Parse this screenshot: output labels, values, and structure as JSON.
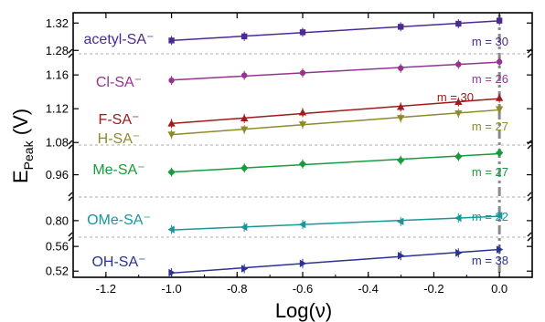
{
  "chart_data": {
    "type": "scatter",
    "xlabel": "Log(ν)",
    "ylabel": {
      "main": "E",
      "sub": "Peak",
      "unit": " (V)"
    },
    "xlim": [
      -1.3,
      0.1
    ],
    "xticks": [
      "-1.2",
      "-1.0",
      "-0.8",
      "-0.6",
      "-0.4",
      "-0.2",
      "0.0"
    ],
    "xtick_values": [
      -1.2,
      -1.0,
      -0.8,
      -0.6,
      -0.4,
      -0.2,
      0.0
    ],
    "x": [
      -1.0,
      -0.778,
      -0.6,
      -0.301,
      -0.125,
      0.0
    ],
    "panels": [
      {
        "id": "p1",
        "ylim": [
          1.275,
          1.335
        ],
        "yticks": [
          "1.28",
          "1.32"
        ],
        "ytick_values": [
          1.28,
          1.32
        ]
      },
      {
        "id": "p2",
        "ylim": [
          1.077,
          1.185
        ],
        "yticks": [
          "1.08",
          "1.12",
          "1.16"
        ],
        "ytick_values": [
          1.08,
          1.12,
          1.16
        ]
      },
      {
        "id": "p3",
        "ylim": [
          0.93,
          1.0
        ],
        "yticks": [
          "0.96"
        ],
        "ytick_values": [
          0.96
        ]
      },
      {
        "id": "p4",
        "ylim": [
          0.772,
          0.84
        ],
        "yticks": [
          "0.80"
        ],
        "ytick_values": [
          0.8
        ]
      },
      {
        "id": "p5",
        "ylim": [
          0.51,
          0.575
        ],
        "yticks": [
          "0.52",
          "0.56"
        ],
        "ytick_values": [
          0.52,
          0.56
        ]
      }
    ],
    "series": [
      {
        "name": "acetyl-SA⁻",
        "panel": "p1",
        "color": "#4b2a96",
        "marker": "square",
        "values": [
          1.2945,
          1.3005,
          1.3065,
          1.3145,
          1.319,
          1.3235
        ],
        "slope_label": "m = 30"
      },
      {
        "name": "Cl-SA⁻",
        "panel": "p2",
        "color": "#93358f",
        "marker": "circle",
        "values": [
          1.1535,
          1.1595,
          1.1625,
          1.168,
          1.1725,
          1.1755
        ],
        "slope_label": "m = 26"
      },
      {
        "name": "F-SA⁻",
        "panel": "p2",
        "color": "#a01a1a",
        "marker": "triangle-up",
        "values": [
          1.1025,
          1.1085,
          1.1155,
          1.122,
          1.128,
          1.1325
        ],
        "slope_label": "m = 30"
      },
      {
        "name": "H-SA⁻",
        "panel": "p2",
        "color": "#8b8b2a",
        "marker": "triangle-down",
        "values": [
          1.0895,
          1.0955,
          1.1015,
          1.109,
          1.1145,
          1.1195
        ],
        "slope_label": "m = 27"
      },
      {
        "name": "Me-SA⁻",
        "panel": "p3",
        "color": "#169c3c",
        "marker": "diamond",
        "values": [
          0.9635,
          0.969,
          0.9745,
          0.9795,
          0.9845,
          0.9895
        ],
        "slope_label": "m = 27"
      },
      {
        "name": "OMe-SA⁻",
        "panel": "p4",
        "color": "#17979a",
        "marker": "triangle-left",
        "values": [
          0.785,
          0.789,
          0.7935,
          0.7985,
          0.8045,
          0.8085
        ],
        "slope_label": "m = 22"
      },
      {
        "name": "OH-SA⁻",
        "panel": "p5",
        "color": "#2b3290",
        "marker": "triangle-right",
        "values": [
          0.5175,
          0.524,
          0.5325,
          0.545,
          0.5495,
          0.555
        ],
        "slope_label": "m = 38"
      }
    ]
  }
}
